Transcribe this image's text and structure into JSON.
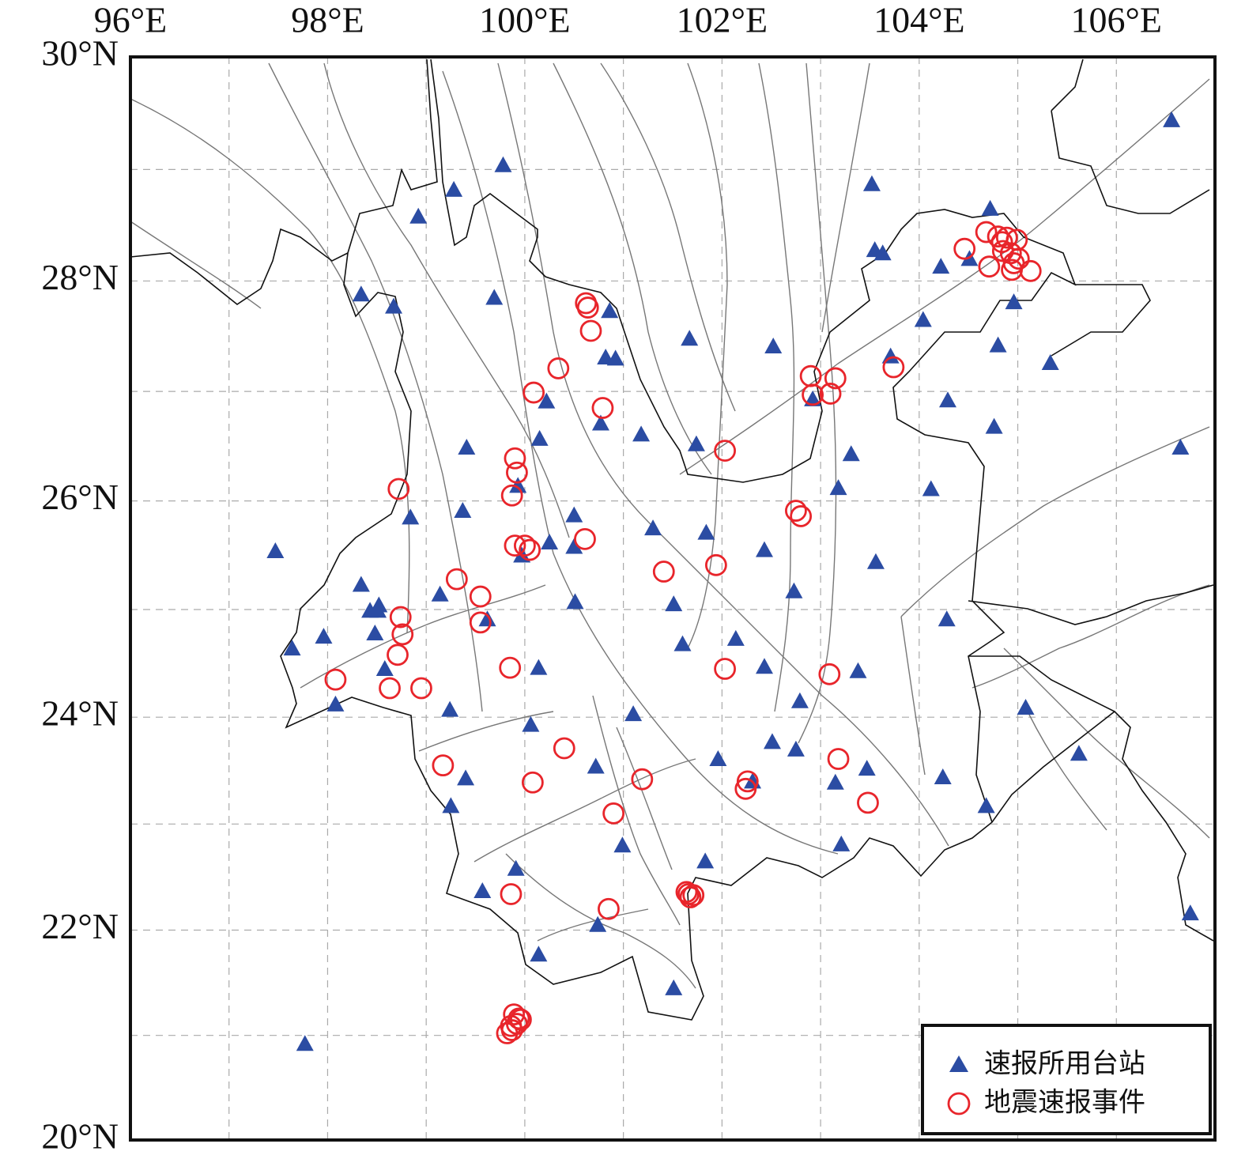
{
  "chart_data": {
    "type": "scatter",
    "projection": "mercator",
    "xlim": [
      96,
      107
    ],
    "ylim": [
      20,
      30
    ],
    "xticks": [
      {
        "value": 96,
        "label": "96°E"
      },
      {
        "value": 98,
        "label": "98°E"
      },
      {
        "value": 100,
        "label": "100°E"
      },
      {
        "value": 102,
        "label": "102°E"
      },
      {
        "value": 104,
        "label": "104°E"
      },
      {
        "value": 106,
        "label": "106°E"
      }
    ],
    "yticks": [
      {
        "value": 20,
        "label": "20°N"
      },
      {
        "value": 22,
        "label": "22°N"
      },
      {
        "value": 24,
        "label": "24°N"
      },
      {
        "value": 26,
        "label": "26°N"
      },
      {
        "value": 28,
        "label": "28°N"
      },
      {
        "value": 30,
        "label": "30°N"
      }
    ],
    "xgrid": [
      97,
      98,
      99,
      100,
      101,
      102,
      103,
      104,
      105,
      106
    ],
    "ygrid": [
      21,
      22,
      23,
      24,
      25,
      26,
      27,
      28,
      29
    ],
    "grid": true,
    "legend": "lower right",
    "series": [
      {
        "name": "速报所用台站",
        "color": "#2b4ca3",
        "marker": "triangle",
        "x": [
          106.56,
          99.78,
          99.28,
          98.92,
          103.52,
          104.72,
          103.55,
          103.63,
          104.22,
          104.51,
          98.34,
          98.67,
          99.69,
          100.86,
          104.96,
          104.04,
          101.67,
          102.52,
          104.8,
          100.82,
          100.92,
          103.71,
          105.33,
          102.92,
          100.22,
          104.29,
          100.77,
          101.18,
          100.15,
          104.76,
          101.74,
          99.41,
          103.31,
          106.65,
          99.93,
          103.18,
          104.12,
          99.37,
          98.84,
          100.5,
          101.3,
          101.84,
          100.25,
          100.5,
          99.97,
          97.47,
          102.43,
          103.56,
          98.34,
          102.73,
          99.14,
          100.51,
          101.51,
          98.43,
          98.51,
          98.52,
          99.62,
          104.28,
          97.96,
          98.48,
          97.64,
          102.14,
          101.6,
          98.58,
          100.14,
          102.43,
          103.38,
          102.79,
          98.08,
          99.24,
          101.1,
          105.08,
          100.06,
          102.51,
          102.75,
          100.72,
          101.96,
          103.47,
          105.62,
          99.4,
          104.24,
          102.31,
          103.15,
          99.25,
          104.68,
          100.99,
          103.21,
          101.83,
          99.91,
          99.57,
          100.74,
          106.75,
          100.14,
          101.51,
          97.77
        ],
        "values": [
          29.44,
          29.04,
          28.82,
          28.58,
          28.87,
          28.65,
          28.28,
          28.25,
          28.13,
          28.2,
          27.88,
          27.77,
          27.85,
          27.73,
          27.81,
          27.65,
          27.48,
          27.41,
          27.42,
          27.31,
          27.3,
          27.32,
          27.26,
          26.93,
          26.91,
          26.92,
          26.71,
          26.61,
          26.57,
          26.68,
          26.52,
          26.49,
          26.43,
          26.49,
          26.14,
          26.12,
          26.11,
          25.91,
          25.85,
          25.87,
          25.75,
          25.71,
          25.62,
          25.58,
          25.5,
          25.54,
          25.55,
          25.44,
          25.23,
          25.17,
          25.14,
          25.07,
          25.05,
          24.99,
          24.99,
          25.04,
          24.91,
          24.91,
          24.75,
          24.78,
          24.64,
          24.73,
          24.68,
          24.45,
          24.46,
          24.47,
          24.43,
          24.15,
          24.12,
          24.07,
          24.03,
          24.09,
          23.93,
          23.77,
          23.7,
          23.54,
          23.61,
          23.52,
          23.66,
          23.43,
          23.44,
          23.4,
          23.39,
          23.17,
          23.17,
          22.8,
          22.81,
          22.65,
          22.58,
          22.37,
          22.05,
          22.16,
          21.77,
          21.45,
          20.92
        ]
      },
      {
        "name": "地震速报事件",
        "color": "#e8252b",
        "marker": "circle",
        "x": [
          100.62,
          100.64,
          100.67,
          100.34,
          100.09,
          100.79,
          102.9,
          103.15,
          102.92,
          103.1,
          103.74,
          104.46,
          104.68,
          104.71,
          104.8,
          104.89,
          104.99,
          104.85,
          104.93,
          104.96,
          104.94,
          105.13,
          104.84,
          105.01,
          102.03,
          99.9,
          99.92,
          99.87,
          98.72,
          102.75,
          102.8,
          99.9,
          100.0,
          100.05,
          100.61,
          101.41,
          101.94,
          99.31,
          99.55,
          99.55,
          98.74,
          98.76,
          98.71,
          98.08,
          98.63,
          98.95,
          99.85,
          102.03,
          103.09,
          99.17,
          100.4,
          100.08,
          101.19,
          102.26,
          102.24,
          103.18,
          103.48,
          100.9,
          99.86,
          100.85,
          101.66,
          101.68,
          101.71,
          101.64,
          99.89,
          99.94,
          99.86,
          99.82,
          99.92,
          99.96,
          99.87
        ],
        "values": [
          27.8,
          27.76,
          27.55,
          27.21,
          26.99,
          26.85,
          27.14,
          27.12,
          26.97,
          26.98,
          27.22,
          28.29,
          28.44,
          28.13,
          28.4,
          28.39,
          28.37,
          28.27,
          28.25,
          28.16,
          28.1,
          28.09,
          28.35,
          28.2,
          26.46,
          26.39,
          26.26,
          26.05,
          26.11,
          25.91,
          25.86,
          25.59,
          25.59,
          25.55,
          25.65,
          25.35,
          25.41,
          25.28,
          25.12,
          24.88,
          24.93,
          24.77,
          24.58,
          24.35,
          24.27,
          24.27,
          24.46,
          24.45,
          24.4,
          23.55,
          23.71,
          23.39,
          23.42,
          23.4,
          23.33,
          23.61,
          23.2,
          23.1,
          22.34,
          22.2,
          22.34,
          22.31,
          22.33,
          22.36,
          21.2,
          21.16,
          21.09,
          21.02,
          21.11,
          21.15,
          21.05
        ]
      }
    ]
  }
}
